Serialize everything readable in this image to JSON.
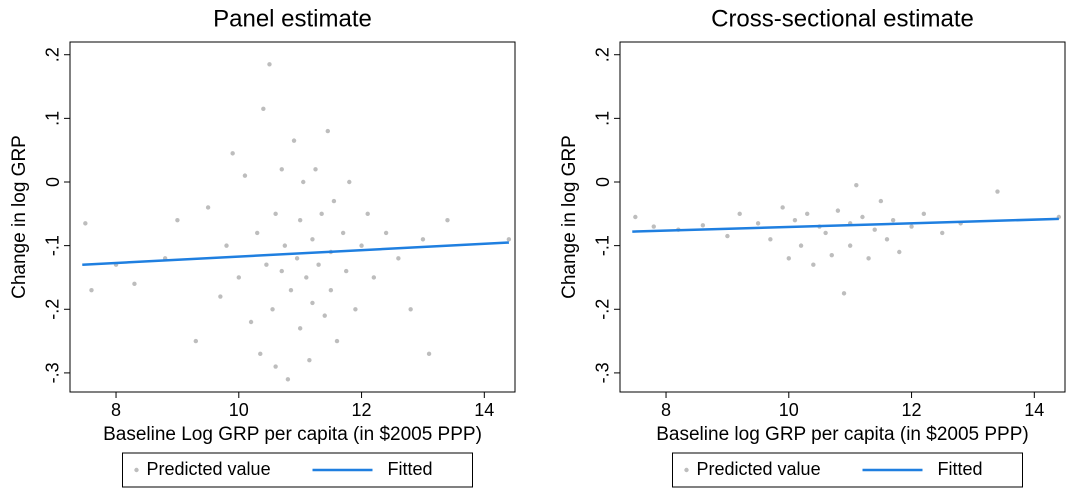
{
  "chart_data": [
    {
      "type": "scatter",
      "title": "Panel estimate",
      "x_label": "Baseline Log GRP per capita (in $2005 PPP)",
      "y_label": "Change in log GRP",
      "xlim": [
        7.25,
        14.5
      ],
      "ylim": [
        -0.33,
        0.22
      ],
      "xticks": [
        8,
        10,
        12,
        14
      ],
      "yticks": [
        {
          "value": 0.2,
          "label": ".2"
        },
        {
          "value": 0.1,
          "label": ".1"
        },
        0,
        {
          "value": -0.1,
          "label": "-.1"
        },
        {
          "value": -0.2,
          "label": "-.2"
        },
        {
          "value": -0.3,
          "label": "-.3"
        }
      ],
      "grid": false,
      "legend": "bottom",
      "series": [
        {
          "name": "Predicted value",
          "color": "#bdbdbd",
          "mode": "markers",
          "x": [
            7.5,
            7.6,
            8.0,
            8.3,
            8.8,
            9.0,
            9.3,
            9.5,
            9.7,
            9.8,
            9.9,
            10.0,
            10.1,
            10.2,
            10.3,
            10.35,
            10.4,
            10.45,
            10.5,
            10.55,
            10.6,
            10.6,
            10.7,
            10.7,
            10.75,
            10.8,
            10.85,
            10.9,
            10.95,
            11.0,
            11.0,
            11.05,
            11.1,
            11.15,
            11.2,
            11.2,
            11.25,
            11.3,
            11.35,
            11.4,
            11.45,
            11.5,
            11.5,
            11.55,
            11.6,
            11.7,
            11.75,
            11.8,
            11.9,
            12.0,
            12.1,
            12.2,
            12.4,
            12.6,
            12.8,
            13.0,
            13.1,
            13.4,
            14.4
          ],
          "values": [
            -0.065,
            -0.17,
            -0.13,
            -0.16,
            -0.12,
            -0.06,
            -0.25,
            -0.04,
            -0.18,
            -0.1,
            0.045,
            -0.15,
            0.01,
            -0.22,
            -0.08,
            -0.27,
            0.115,
            -0.13,
            0.185,
            -0.2,
            -0.05,
            -0.29,
            -0.14,
            0.02,
            -0.1,
            -0.31,
            -0.17,
            0.065,
            -0.12,
            -0.23,
            -0.06,
            0.0,
            -0.15,
            -0.28,
            -0.09,
            -0.19,
            0.02,
            -0.13,
            -0.05,
            -0.21,
            0.08,
            -0.11,
            -0.17,
            -0.03,
            -0.25,
            -0.08,
            -0.14,
            0.0,
            -0.2,
            -0.1,
            -0.05,
            -0.15,
            -0.08,
            -0.12,
            -0.2,
            -0.09,
            -0.27,
            -0.06,
            -0.09
          ]
        },
        {
          "name": "Fitted",
          "color": "#1f7fe0",
          "mode": "line",
          "x": [
            7.45,
            14.4
          ],
          "values": [
            -0.13,
            -0.095
          ]
        }
      ]
    },
    {
      "type": "scatter",
      "title": "Cross-sectional estimate",
      "x_label": "Baseline log GRP per capita (in $2005 PPP)",
      "y_label": "Change in log GRP",
      "xlim": [
        7.25,
        14.5
      ],
      "ylim": [
        -0.33,
        0.22
      ],
      "xticks": [
        8,
        10,
        12,
        14
      ],
      "yticks": [
        {
          "value": 0.2,
          "label": ".2"
        },
        {
          "value": 0.1,
          "label": ".1"
        },
        0,
        {
          "value": -0.1,
          "label": "-.1"
        },
        {
          "value": -0.2,
          "label": "-.2"
        },
        {
          "value": -0.3,
          "label": "-.3"
        }
      ],
      "grid": false,
      "legend": "bottom",
      "series": [
        {
          "name": "Predicted value",
          "color": "#bdbdbd",
          "mode": "markers",
          "x": [
            7.5,
            7.8,
            8.2,
            8.6,
            9.0,
            9.2,
            9.5,
            9.7,
            9.9,
            10.0,
            10.1,
            10.2,
            10.3,
            10.4,
            10.5,
            10.6,
            10.7,
            10.8,
            10.9,
            11.0,
            11.0,
            11.1,
            11.2,
            11.3,
            11.4,
            11.5,
            11.6,
            11.7,
            11.8,
            12.0,
            12.2,
            12.5,
            12.8,
            13.4,
            14.4
          ],
          "values": [
            -0.055,
            -0.07,
            -0.075,
            -0.068,
            -0.085,
            -0.05,
            -0.065,
            -0.09,
            -0.04,
            -0.12,
            -0.06,
            -0.1,
            -0.05,
            -0.13,
            -0.07,
            -0.08,
            -0.115,
            -0.045,
            -0.175,
            -0.065,
            -0.1,
            -0.005,
            -0.055,
            -0.12,
            -0.075,
            -0.03,
            -0.09,
            -0.06,
            -0.11,
            -0.07,
            -0.05,
            -0.08,
            -0.065,
            -0.015,
            -0.055
          ]
        },
        {
          "name": "Fitted",
          "color": "#1f7fe0",
          "mode": "line",
          "x": [
            7.45,
            14.4
          ],
          "values": [
            -0.078,
            -0.058
          ]
        }
      ]
    }
  ]
}
